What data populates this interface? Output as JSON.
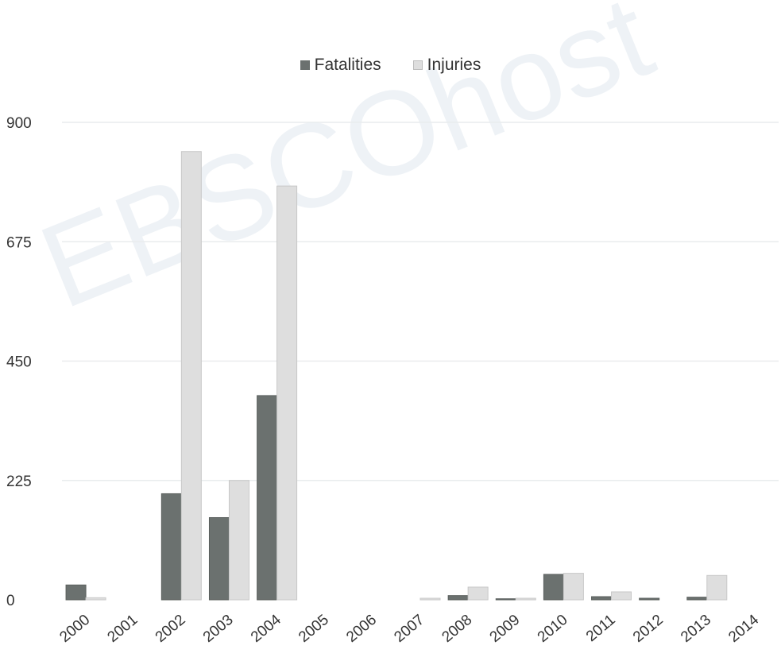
{
  "watermark": "EBSCOhost",
  "chart_data": {
    "type": "bar",
    "categories": [
      "2000",
      "2001",
      "2002",
      "2003",
      "2004",
      "2005",
      "2006",
      "2007",
      "2008",
      "2009",
      "2010",
      "2011",
      "2012",
      "2013",
      "2014"
    ],
    "series": [
      {
        "name": "Fatalities",
        "color": "#6b716f",
        "values": [
          28,
          0,
          200,
          155,
          385,
          0,
          0,
          0,
          8,
          2,
          48,
          6,
          3,
          5,
          0
        ]
      },
      {
        "name": "Injuries",
        "color": "#dedede",
        "values": [
          4,
          0,
          845,
          225,
          780,
          0,
          0,
          3,
          24,
          3,
          50,
          15,
          0,
          46,
          0
        ]
      }
    ],
    "y_ticks": [
      "0",
      "225",
      "450",
      "675",
      "900"
    ],
    "ylim": [
      0,
      900
    ],
    "grid": true,
    "legend_position": "top-center",
    "xlabel": "",
    "ylabel": ""
  }
}
